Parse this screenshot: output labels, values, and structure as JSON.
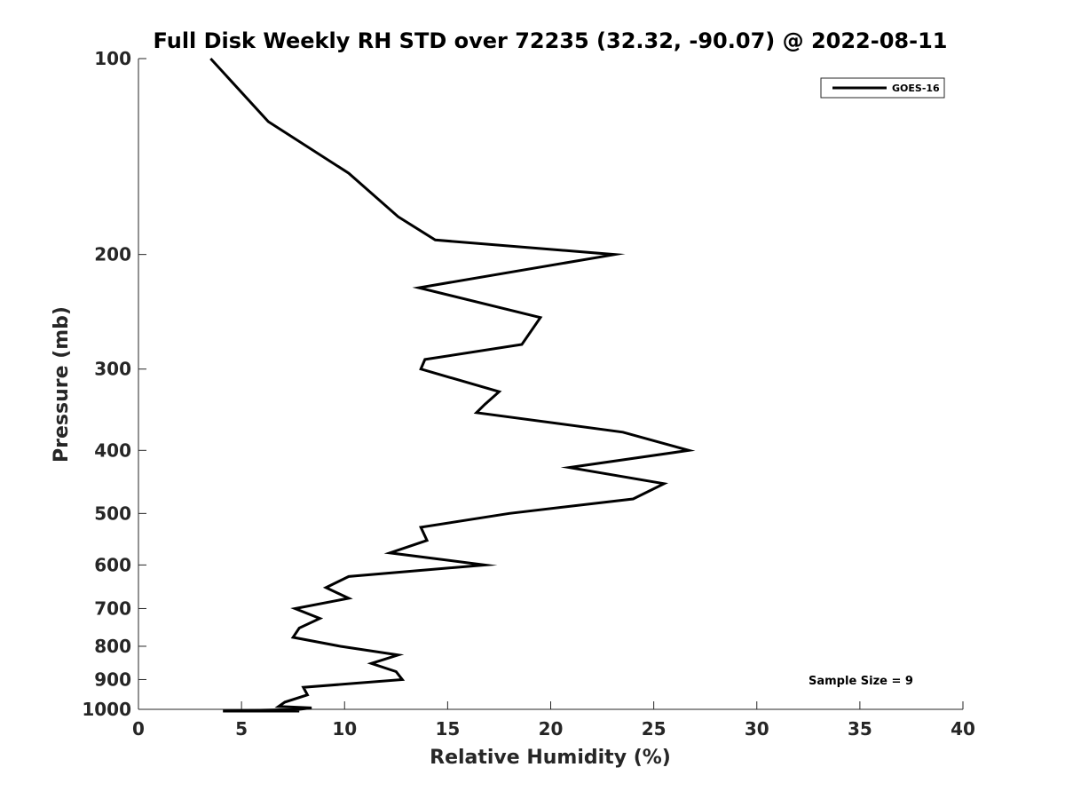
{
  "chart_data": {
    "type": "line",
    "title": "Full Disk Weekly RH STD over 72235 (32.32, -90.07) @ 2022-08-11",
    "xlabel": "Relative Humidity (%)",
    "ylabel": "Pressure (mb)",
    "xlim": [
      0,
      40
    ],
    "ylim": [
      100,
      1000
    ],
    "y_scale": "log",
    "y_reversed": true,
    "x_ticks": [
      0,
      5,
      10,
      15,
      20,
      25,
      30,
      35,
      40
    ],
    "y_ticks": [
      100,
      200,
      300,
      400,
      500,
      600,
      700,
      800,
      900,
      1000
    ],
    "grid": false,
    "legend_position": "top-right",
    "annotation": "Sample Size = 9",
    "series": [
      {
        "name": "GOES-16",
        "color": "#000000",
        "points": [
          [
            3.5,
            100
          ],
          [
            6.3,
            125
          ],
          [
            10.2,
            150
          ],
          [
            12.6,
            175
          ],
          [
            14.4,
            190
          ],
          [
            23.1,
            200
          ],
          [
            13.6,
            225
          ],
          [
            19.5,
            250
          ],
          [
            18.6,
            275
          ],
          [
            13.9,
            290
          ],
          [
            13.7,
            300
          ],
          [
            17.5,
            325
          ],
          [
            16.8,
            340
          ],
          [
            16.4,
            350
          ],
          [
            23.5,
            375
          ],
          [
            26.7,
            400
          ],
          [
            20.9,
            425
          ],
          [
            25.5,
            450
          ],
          [
            24.0,
            475
          ],
          [
            18.0,
            500
          ],
          [
            13.7,
            525
          ],
          [
            14.0,
            550
          ],
          [
            12.2,
            575
          ],
          [
            16.8,
            600
          ],
          [
            10.2,
            625
          ],
          [
            9.1,
            650
          ],
          [
            10.2,
            675
          ],
          [
            7.6,
            700
          ],
          [
            8.8,
            725
          ],
          [
            7.8,
            750
          ],
          [
            7.5,
            775
          ],
          [
            9.8,
            800
          ],
          [
            12.6,
            825
          ],
          [
            11.3,
            850
          ],
          [
            12.5,
            875
          ],
          [
            12.8,
            900
          ],
          [
            8.0,
            925
          ],
          [
            8.2,
            950
          ],
          [
            7.1,
            975
          ],
          [
            6.8,
            990
          ],
          [
            8.4,
            995
          ],
          [
            7.8,
            1000
          ],
          [
            4.1,
            1010
          ],
          [
            7.8,
            1020
          ],
          [
            5.5,
            1030
          ]
        ]
      }
    ]
  }
}
